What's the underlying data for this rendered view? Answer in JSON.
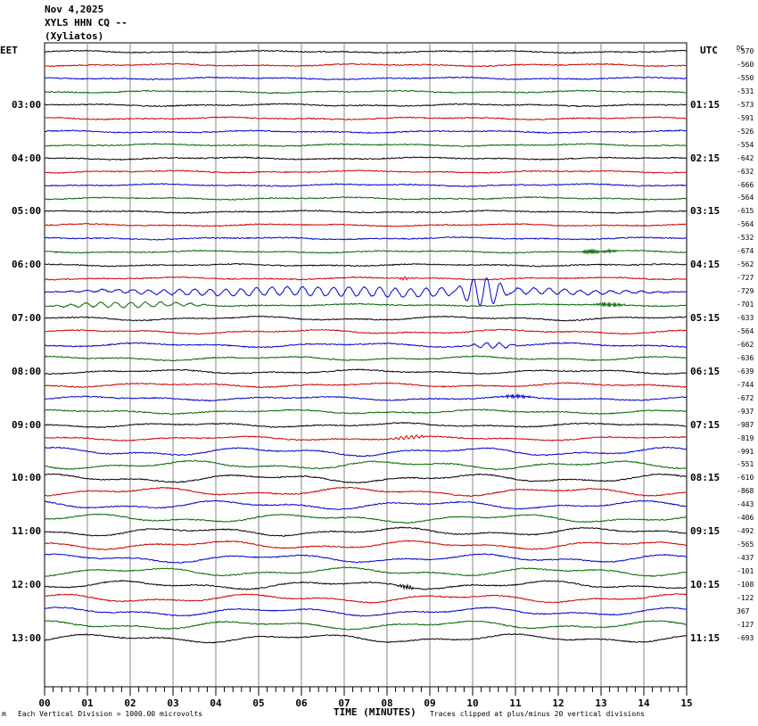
{
  "header": {
    "date": "Nov 4,2025",
    "station": "XYLS HHN CQ --",
    "location": "(Xyliatos)"
  },
  "left_axis_label": "EET",
  "right_axis_label": "UTC",
  "dc_label": "DC",
  "footer": {
    "mark": "m",
    "scale_note": "Each Vertical Division = 1000.00 microvolts",
    "xlabel": "TIME (MINUTES)",
    "clip_note": "Traces clipped at plus/minus 20 vertical divisions"
  },
  "chart_data": {
    "type": "line",
    "subtype": "helicorder",
    "xlabel": "TIME (MINUTES)",
    "xlim": [
      0,
      15
    ],
    "x_ticks": [
      "00",
      "01",
      "02",
      "03",
      "04",
      "05",
      "06",
      "07",
      "08",
      "09",
      "10",
      "11",
      "12",
      "13",
      "14",
      "15"
    ],
    "left_time_labels": [
      "03:00",
      "04:00",
      "05:00",
      "06:00",
      "07:00",
      "08:00",
      "09:00",
      "10:00",
      "11:00",
      "12:00",
      "13:00"
    ],
    "right_time_labels": [
      "01:15",
      "02:15",
      "03:15",
      "04:15",
      "05:15",
      "06:15",
      "07:15",
      "08:15",
      "09:15",
      "10:15",
      "11:15"
    ],
    "trace_colors": [
      "#000000",
      "#cc0000",
      "#0000cc",
      "#006600"
    ],
    "dc_offsets": [
      "-570",
      "-560",
      "-550",
      "-531",
      "-573",
      "-591",
      "-526",
      "-554",
      "-642",
      "-632",
      "-666",
      "-564",
      "-615",
      "-564",
      "-532",
      "-674",
      "-562",
      "-727",
      "-729",
      "-701",
      "-633",
      "-564",
      "-662",
      "-636",
      "-639",
      "-744",
      "-672",
      "-937",
      "-987",
      "-819",
      "-991",
      "-551",
      "-610",
      "-868",
      "-443",
      "-406",
      "-492",
      "-565",
      "-437",
      "-101",
      "-108",
      "-122",
      "367",
      "-127",
      "-693"
    ],
    "events": [
      {
        "row": 17,
        "start_min": 8.2,
        "end_min": 8.6,
        "amp": 1.5,
        "period_min": 0.08
      },
      {
        "row": 18,
        "start_min": 0.0,
        "end_min": 15.0,
        "amp": 5.0,
        "period_min": 0.36
      },
      {
        "row": 18,
        "start_min": 9.5,
        "end_min": 11.0,
        "amp": 12.0,
        "period_min": 0.3
      },
      {
        "row": 19,
        "start_min": 0.0,
        "end_min": 4.0,
        "amp": 3.0,
        "period_min": 0.35
      },
      {
        "row": 19,
        "start_min": 12.8,
        "end_min": 13.6,
        "amp": 2.5,
        "period_min": 0.05
      },
      {
        "row": 15,
        "start_min": 12.4,
        "end_min": 13.4,
        "amp": 2.5,
        "period_min": 0.04
      },
      {
        "row": 22,
        "start_min": 9.8,
        "end_min": 11.2,
        "amp": 3.0,
        "period_min": 0.3
      },
      {
        "row": 26,
        "start_min": 10.6,
        "end_min": 11.5,
        "amp": 1.8,
        "period_min": 0.05
      },
      {
        "row": 29,
        "start_min": 8.0,
        "end_min": 9.0,
        "amp": 2.0,
        "period_min": 0.12
      },
      {
        "row": 40,
        "start_min": 8.2,
        "end_min": 8.7,
        "amp": 2.5,
        "period_min": 0.06
      }
    ]
  }
}
